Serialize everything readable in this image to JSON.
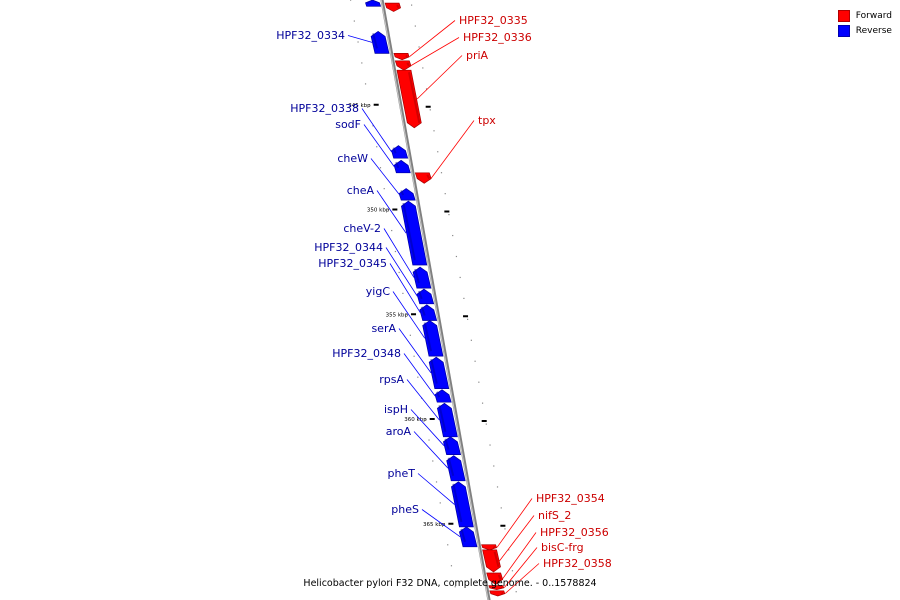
{
  "caption": "Helicobacter pylori F32 DNA, complete genome. - 0..1578824",
  "legend": [
    {
      "label": "Forward",
      "color": "#ff0000"
    },
    {
      "label": "Reverse",
      "color": "#0000ff"
    }
  ],
  "colors": {
    "forward": "#ff0000",
    "reverse": "#0000ff",
    "axis": "#999999",
    "label_forward": "#cc0000",
    "label_reverse": "#000099"
  },
  "axis": {
    "start_kbp": 340,
    "end_kbp": 368
  },
  "ticks": [
    {
      "kbp": 345,
      "label": "345 kbp"
    },
    {
      "kbp": 350,
      "label": "350 kbp"
    },
    {
      "kbp": 355,
      "label": "355 kbp"
    },
    {
      "kbp": 360,
      "label": "360 kbp"
    },
    {
      "kbp": 365,
      "label": "365 kbp"
    }
  ],
  "genes": [
    {
      "label": "",
      "strand": "reverse",
      "start": 340.0,
      "end": 340.3
    },
    {
      "label": "",
      "strand": "forward",
      "start": 340.15,
      "end": 340.55
    },
    {
      "label": "HPF32_0334",
      "strand": "reverse",
      "start": 341.5,
      "end": 342.55
    },
    {
      "label": "HPF32_0335",
      "strand": "forward",
      "start": 342.55,
      "end": 342.85
    },
    {
      "label": "HPF32_0336",
      "strand": "forward",
      "start": 342.9,
      "end": 343.35
    },
    {
      "label": "priA",
      "strand": "forward",
      "start": 343.35,
      "end": 346.1
    },
    {
      "label": "HPF32_0338",
      "strand": "reverse",
      "start": 346.95,
      "end": 347.55
    },
    {
      "label": "sodF",
      "strand": "reverse",
      "start": 347.65,
      "end": 348.25
    },
    {
      "label": "tpx",
      "strand": "forward",
      "start": 348.25,
      "end": 348.75
    },
    {
      "label": "cheW",
      "strand": "reverse",
      "start": 349.0,
      "end": 349.55
    },
    {
      "label": "cheA",
      "strand": "reverse",
      "start": 349.6,
      "end": 352.65
    },
    {
      "label": "cheV-2",
      "strand": "reverse",
      "start": 352.75,
      "end": 353.75
    },
    {
      "label": "HPF32_0344",
      "strand": "reverse",
      "start": 353.8,
      "end": 354.5
    },
    {
      "label": "HPF32_0345",
      "strand": "reverse",
      "start": 354.55,
      "end": 355.3
    },
    {
      "label": "yigC",
      "strand": "reverse",
      "start": 355.3,
      "end": 357.0
    },
    {
      "label": "serA",
      "strand": "reverse",
      "start": 357.05,
      "end": 358.55
    },
    {
      "label": "HPF32_0348",
      "strand": "reverse",
      "start": 358.6,
      "end": 359.2
    },
    {
      "label": "rpsA",
      "strand": "reverse",
      "start": 359.25,
      "end": 360.85
    },
    {
      "label": "ispH",
      "strand": "reverse",
      "start": 360.85,
      "end": 361.7
    },
    {
      "label": "aroA",
      "strand": "reverse",
      "start": 361.75,
      "end": 362.95
    },
    {
      "label": "pheT",
      "strand": "reverse",
      "start": 363.0,
      "end": 365.15
    },
    {
      "label": "pheS",
      "strand": "reverse",
      "start": 365.15,
      "end": 366.1
    },
    {
      "label": "HPF32_0354",
      "strand": "forward",
      "start": 366.0,
      "end": 366.25
    },
    {
      "label": "nifS_2",
      "strand": "forward",
      "start": 366.25,
      "end": 367.3
    },
    {
      "label": "HPF32_0356",
      "strand": "forward",
      "start": 367.35,
      "end": 367.9
    },
    {
      "label": "bisC-frg",
      "strand": "forward",
      "start": 367.95,
      "end": 368.15
    },
    {
      "label": "HPF32_0358",
      "strand": "forward",
      "start": 368.2,
      "end": 368.45
    }
  ]
}
